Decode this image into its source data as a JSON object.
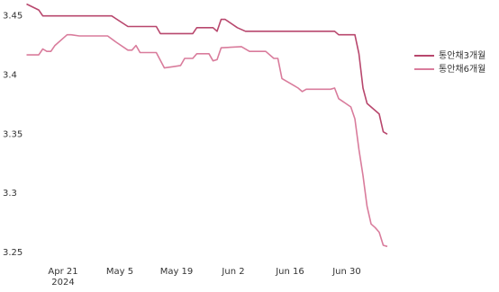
{
  "chart_data": {
    "type": "line",
    "xlim": [
      "2024-04-12",
      "2024-07-10"
    ],
    "xticks": [
      {
        "value": "2024-04-21",
        "label": "Apr 21\n2024"
      },
      {
        "value": "2024-05-05",
        "label": "May 5"
      },
      {
        "value": "2024-05-19",
        "label": "May 19"
      },
      {
        "value": "2024-06-02",
        "label": "Jun 2"
      },
      {
        "value": "2024-06-16",
        "label": "Jun 16"
      },
      {
        "value": "2024-06-30",
        "label": "Jun 30"
      }
    ],
    "ylim": [
      3.245,
      3.46
    ],
    "yticks": [
      3.25,
      3.3,
      3.35,
      3.4,
      3.45
    ],
    "grid": false,
    "legend": "right",
    "series": [
      {
        "name": "통안채3개월",
        "color": "#b8476d",
        "x": [
          "2024-04-12",
          "2024-04-15",
          "2024-04-16",
          "2024-05-03",
          "2024-05-07",
          "2024-05-14",
          "2024-05-15",
          "2024-05-23",
          "2024-05-24",
          "2024-05-28",
          "2024-05-29",
          "2024-05-30",
          "2024-05-31",
          "2024-06-03",
          "2024-06-05",
          "2024-06-27",
          "2024-06-28",
          "2024-07-02",
          "2024-07-03",
          "2024-07-04",
          "2024-07-05",
          "2024-07-08",
          "2024-07-09",
          "2024-07-10"
        ],
        "values": [
          3.46,
          3.455,
          3.45,
          3.45,
          3.441,
          3.441,
          3.435,
          3.435,
          3.44,
          3.44,
          3.437,
          3.447,
          3.447,
          3.44,
          3.437,
          3.437,
          3.434,
          3.434,
          3.418,
          3.389,
          3.376,
          3.367,
          3.352,
          3.35
        ]
      },
      {
        "name": "통안채6개월",
        "color": "#d97c9c",
        "x": [
          "2024-04-12",
          "2024-04-15",
          "2024-04-16",
          "2024-04-17",
          "2024-04-18",
          "2024-04-19",
          "2024-04-22",
          "2024-04-23",
          "2024-04-25",
          "2024-05-02",
          "2024-05-04",
          "2024-05-07",
          "2024-05-08",
          "2024-05-09",
          "2024-05-10",
          "2024-05-14",
          "2024-05-16",
          "2024-05-18",
          "2024-05-20",
          "2024-05-21",
          "2024-05-23",
          "2024-05-24",
          "2024-05-27",
          "2024-05-28",
          "2024-05-29",
          "2024-05-30",
          "2024-06-04",
          "2024-06-06",
          "2024-06-10",
          "2024-06-12",
          "2024-06-13",
          "2024-06-14",
          "2024-06-17",
          "2024-06-18",
          "2024-06-19",
          "2024-06-20",
          "2024-06-26",
          "2024-06-27",
          "2024-06-28",
          "2024-07-01",
          "2024-07-02",
          "2024-07-03",
          "2024-07-04",
          "2024-07-05",
          "2024-07-06",
          "2024-07-07",
          "2024-07-08",
          "2024-07-09",
          "2024-07-10"
        ],
        "values": [
          3.417,
          3.417,
          3.422,
          3.42,
          3.42,
          3.425,
          3.434,
          3.434,
          3.433,
          3.433,
          3.428,
          3.421,
          3.421,
          3.425,
          3.419,
          3.419,
          3.406,
          3.407,
          3.408,
          3.414,
          3.414,
          3.418,
          3.418,
          3.412,
          3.413,
          3.423,
          3.424,
          3.42,
          3.42,
          3.414,
          3.414,
          3.397,
          3.391,
          3.389,
          3.386,
          3.388,
          3.388,
          3.389,
          3.38,
          3.373,
          3.363,
          3.337,
          3.315,
          3.289,
          3.274,
          3.271,
          3.267,
          3.256,
          3.255
        ]
      }
    ]
  }
}
